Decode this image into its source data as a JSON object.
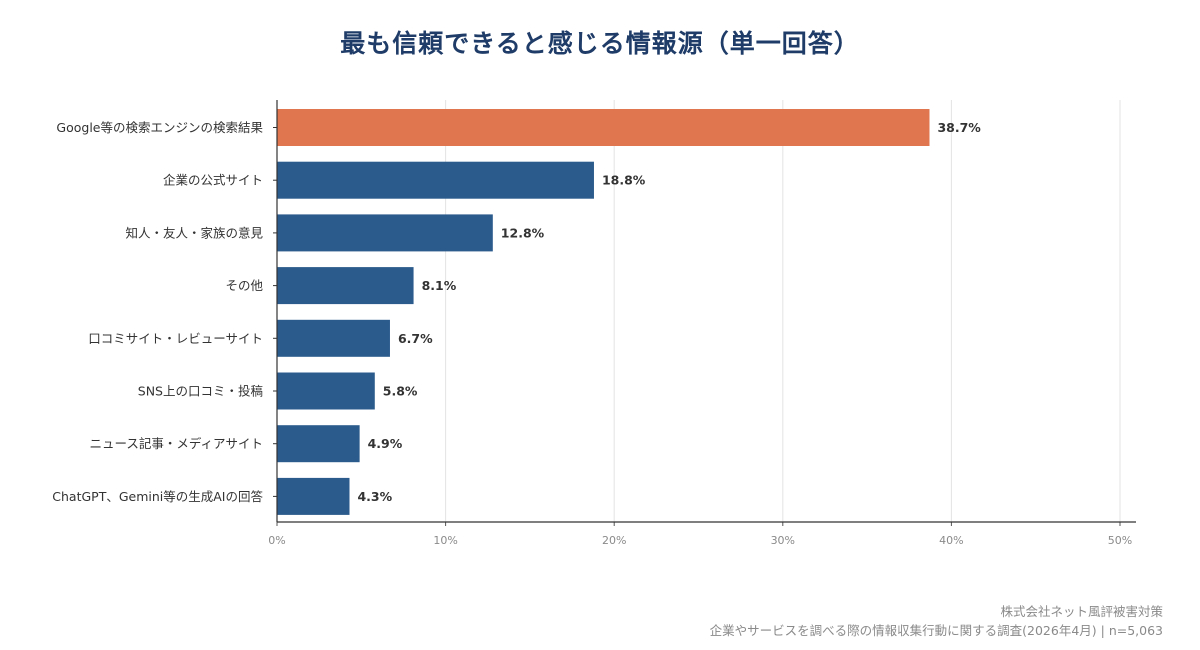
{
  "chart_data": {
    "type": "bar",
    "orientation": "horizontal",
    "title": "最も信頼できると感じる情報源（単一回答）",
    "categories": [
      "Google等の検索エンジンの検索結果",
      "企業の公式サイト",
      "知人・友人・家族の意見",
      "その他",
      "口コミサイト・レビューサイト",
      "SNS上の口コミ・投稿",
      "ニュース記事・メディアサイト",
      "ChatGPT、Gemini等の生成AIの回答"
    ],
    "values": [
      38.7,
      18.8,
      12.8,
      8.1,
      6.7,
      5.8,
      4.9,
      4.3
    ],
    "value_labels": [
      "38.7%",
      "18.8%",
      "12.8%",
      "8.1%",
      "6.7%",
      "5.8%",
      "4.9%",
      "4.3%"
    ],
    "xlim": [
      0,
      50
    ],
    "xticks": [
      0,
      10,
      20,
      30,
      40,
      50
    ],
    "xtick_labels": [
      "0%",
      "10%",
      "20%",
      "30%",
      "40%",
      "50%"
    ],
    "grid": "vertical",
    "colors": {
      "highlight": "#e07650",
      "default": "#2b5b8c",
      "title": "#1f3c68"
    },
    "highlight_index": 0
  },
  "footer": {
    "company": "株式会社ネット風評被害対策",
    "source": "企業やサービスを調べる際の情報収集行動に関する調査(2026年4月) | n=5,063"
  }
}
